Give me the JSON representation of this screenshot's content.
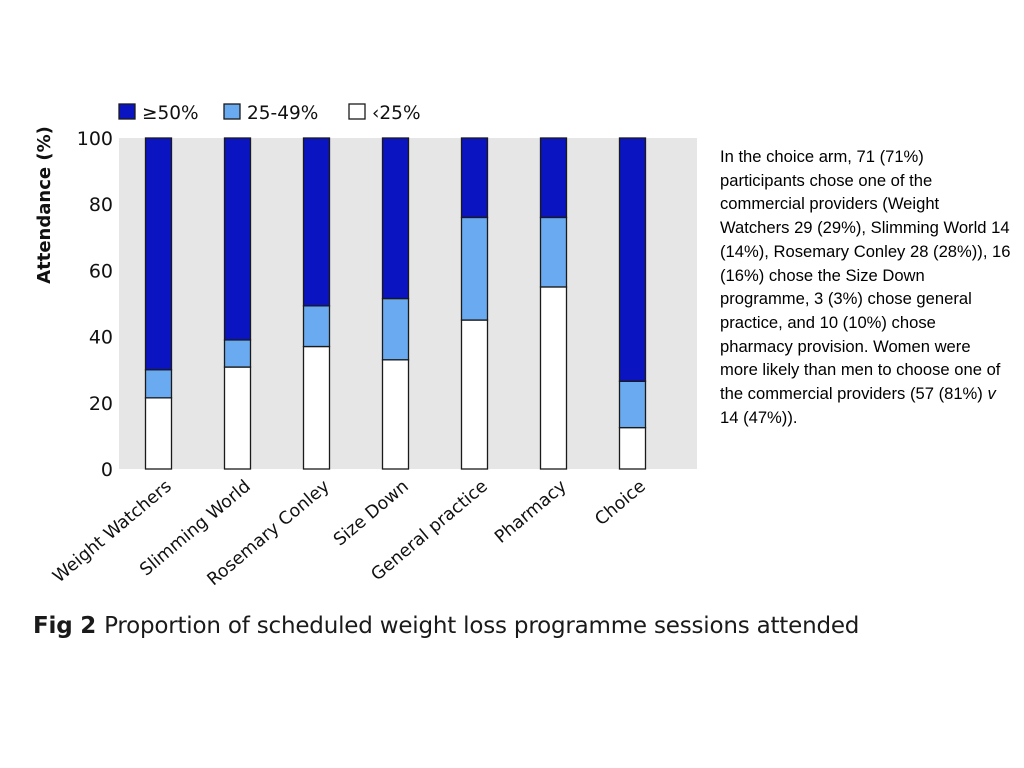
{
  "chart_data": {
    "type": "bar",
    "stacked": true,
    "ylabel": "Attendance (%)",
    "ylim": [
      0,
      100
    ],
    "yticks": [
      0,
      20,
      40,
      60,
      80,
      100
    ],
    "grid": false,
    "legend_position": "top-left",
    "categories": [
      "Weight Watchers",
      "Slimming World",
      "Rosemary Conley",
      "Size Down",
      "General practice",
      "Pharmacy",
      "Choice"
    ],
    "series": [
      {
        "name": "‹25%",
        "color": "#ffffff",
        "values": [
          21.5,
          30.8,
          37,
          33,
          45,
          55,
          12.5
        ]
      },
      {
        "name": "25-49%",
        "color": "#6aaaf0",
        "values": [
          8.5,
          8.2,
          12.3,
          18.5,
          31,
          21,
          14
        ]
      },
      {
        "name": "≥50%",
        "color": "#0a14c0",
        "values": [
          70,
          61,
          50.7,
          48.5,
          24,
          24,
          73.5
        ]
      }
    ],
    "legend_order": [
      "≥50%",
      "25-49%",
      "‹25%"
    ]
  },
  "side_text": {
    "main": "In the choice arm, 71 (71%) participants chose one of the commercial providers (Weight Watchers 29 (29%), Slimming World 14 (14%), Rosemary Conley 28 (28%)), 16 (16%) chose the Size Down programme, 3 (3%) chose general practice, and 10 (10%) chose pharmacy provision. Women were more likely than men to choose one of the commercial providers (57 (81%) ",
    "italic": "v",
    "tail": " 14 (47%))."
  },
  "caption": {
    "label": "Fig 2",
    "text": "Proportion of scheduled weight loss programme sessions attended"
  }
}
